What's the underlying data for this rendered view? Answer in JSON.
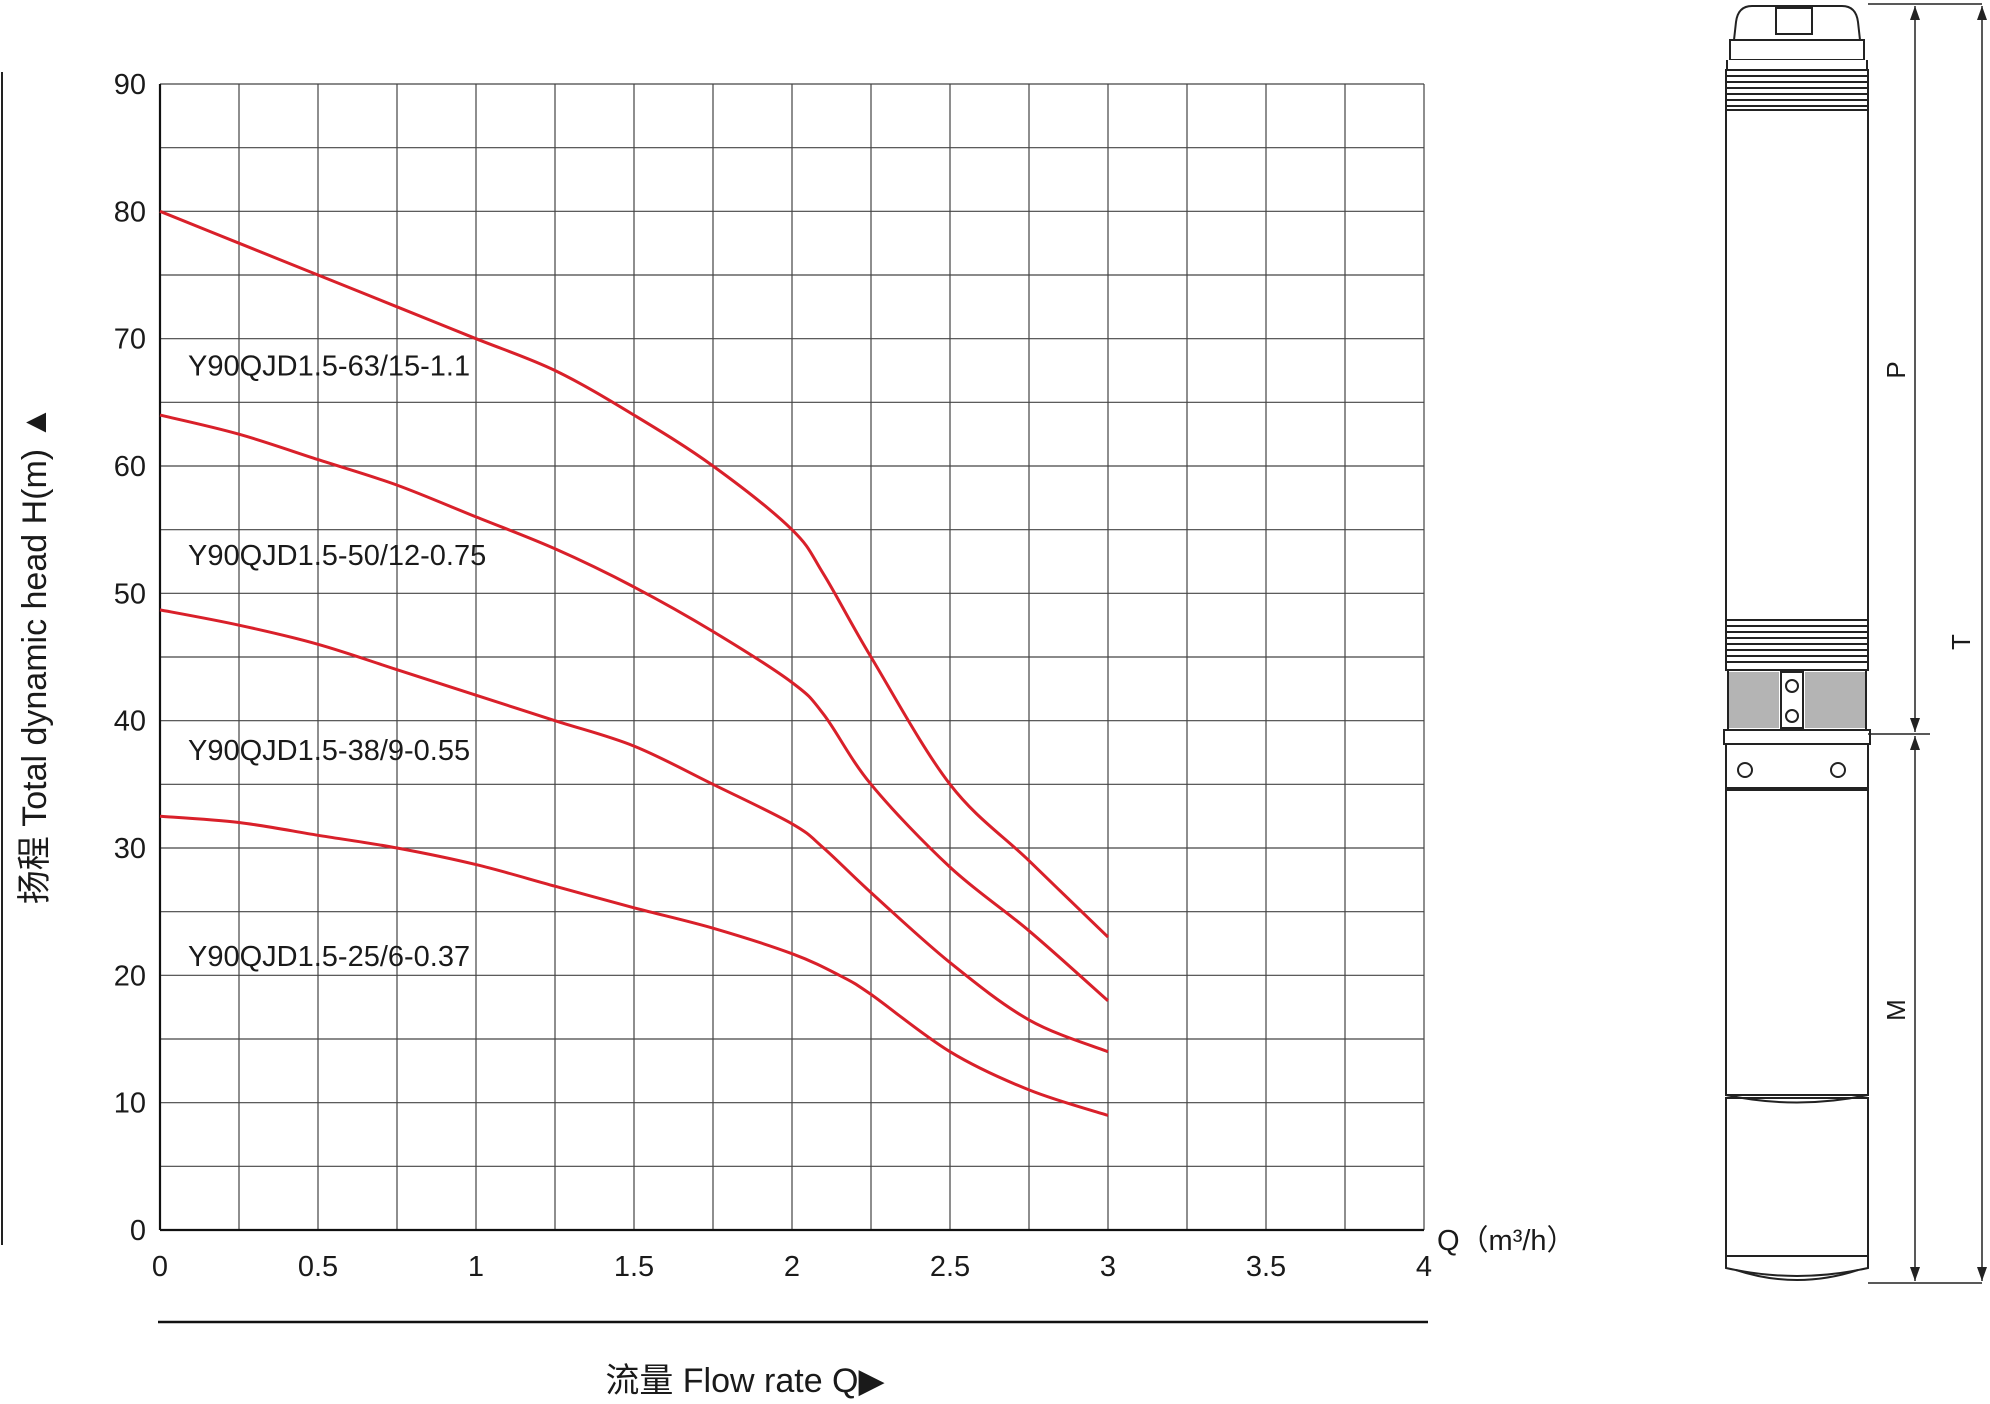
{
  "chart_data": {
    "type": "line",
    "ylabel": "扬程 Total dynamic head H(m) ▲",
    "xlabel": "流量 Flow rate Q▶",
    "x_unit_label": "Q（m³/h）",
    "xlim": [
      0,
      4
    ],
    "ylim": [
      0,
      90
    ],
    "x_ticks": [
      "0",
      "0.5",
      "1",
      "1.5",
      "2",
      "2.5",
      "3",
      "3.5",
      "4"
    ],
    "y_ticks": [
      "0",
      "10",
      "20",
      "30",
      "40",
      "50",
      "60",
      "70",
      "80",
      "90"
    ],
    "grid": true,
    "line_color": "#d9202a",
    "series": [
      {
        "name": "Y90QJD1.5-63/15-1.1",
        "x": [
          0,
          0.25,
          0.5,
          0.75,
          1.0,
          1.25,
          1.5,
          1.75,
          2.0,
          2.1,
          2.25,
          2.5,
          2.75,
          3.0
        ],
        "values": [
          80,
          77.5,
          75,
          72.5,
          70,
          67.5,
          64,
          60,
          55,
          51.5,
          45,
          35,
          29,
          23
        ]
      },
      {
        "name": "Y90QJD1.5-50/12-0.75",
        "x": [
          0,
          0.25,
          0.5,
          0.75,
          1.0,
          1.25,
          1.5,
          1.75,
          2.0,
          2.1,
          2.25,
          2.5,
          2.75,
          3.0
        ],
        "values": [
          64,
          62.5,
          60.5,
          58.5,
          56,
          53.5,
          50.5,
          47,
          43,
          40.5,
          35,
          28.5,
          23.5,
          18
        ]
      },
      {
        "name": "Y90QJD1.5-38/9-0.55",
        "x": [
          0,
          0.25,
          0.5,
          0.75,
          1.0,
          1.25,
          1.5,
          1.75,
          2.0,
          2.1,
          2.25,
          2.5,
          2.75,
          3.0
        ],
        "values": [
          48.7,
          47.5,
          46,
          44,
          42,
          40,
          38,
          35,
          31.9,
          30,
          26.5,
          21,
          16.5,
          14
        ]
      },
      {
        "name": "Y90QJD1.5-25/6-0.37",
        "x": [
          0,
          0.25,
          0.5,
          0.75,
          1.0,
          1.25,
          1.5,
          1.75,
          2.0,
          2.15,
          2.25,
          2.5,
          2.75,
          3.0
        ],
        "values": [
          32.5,
          32,
          31,
          30,
          28.7,
          27,
          25.3,
          23.7,
          21.7,
          20,
          18.5,
          14,
          11,
          9
        ]
      }
    ]
  },
  "pump_drawing": {
    "dimension_labels": [
      "P",
      "T",
      "M"
    ]
  }
}
